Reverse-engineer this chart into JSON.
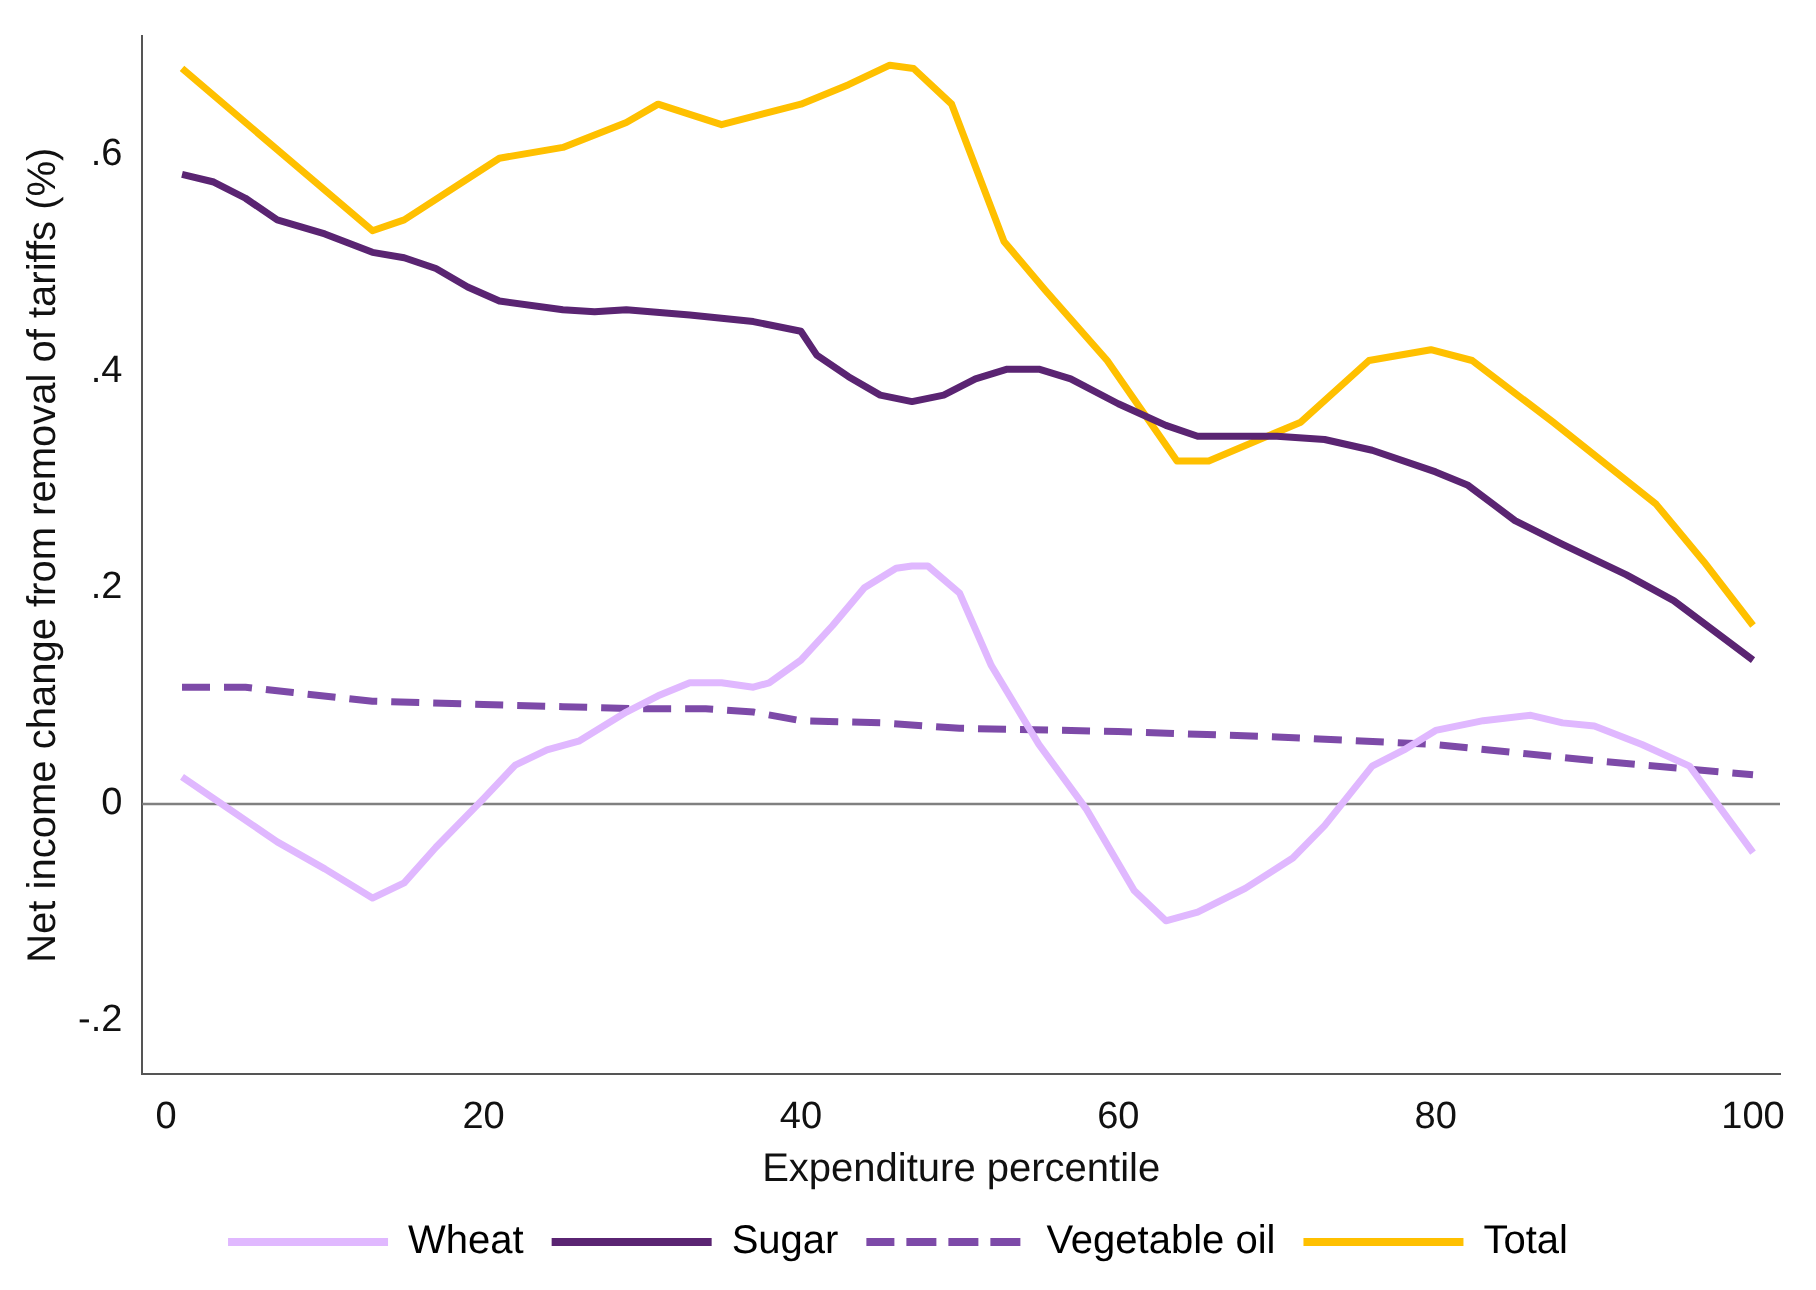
{
  "chart_data": {
    "type": "line",
    "xlabel": "Expenditure percentile",
    "ylabel": "Net income change from removal of tariffs (%)",
    "xlim": [
      -1.5,
      101.7
    ],
    "xticks": [
      0,
      20,
      40,
      60,
      80,
      100
    ],
    "ylim": [
      -0.25,
      0.71
    ],
    "yticks": [
      {
        "value": -0.2,
        "label": "-.2"
      },
      {
        "value": 0,
        "label": "0"
      },
      {
        "value": 0.2,
        "label": ".2"
      },
      {
        "value": 0.4,
        "label": ".4"
      },
      {
        "value": 0.6,
        "label": ".6"
      }
    ],
    "grid": false,
    "legend": "bottom",
    "marker": "none",
    "ref_lines": [
      {
        "axis": "y",
        "value": 0,
        "color": "#808080"
      }
    ],
    "series": [
      {
        "name": "Wheat",
        "color": "#e0b8ff",
        "line_style": "solid",
        "x": [
          1,
          4,
          7,
          10,
          13,
          15,
          17,
          20,
          22,
          24,
          26,
          29,
          31,
          33,
          35,
          37,
          38,
          40,
          42,
          44,
          46,
          47,
          48,
          50,
          52,
          55,
          58,
          61,
          63,
          65,
          68,
          71,
          73,
          76,
          78,
          80,
          83,
          86,
          88,
          90,
          93,
          96,
          100
        ],
        "values": [
          0.025,
          -0.005,
          -0.035,
          -0.06,
          -0.087,
          -0.073,
          -0.04,
          0.005,
          0.036,
          0.05,
          0.058,
          0.085,
          0.1,
          0.112,
          0.112,
          0.108,
          0.112,
          0.133,
          0.165,
          0.2,
          0.218,
          0.22,
          0.22,
          0.195,
          0.128,
          0.055,
          -0.005,
          -0.08,
          -0.108,
          -0.1,
          -0.078,
          -0.05,
          -0.02,
          0.035,
          0.05,
          0.068,
          0.077,
          0.082,
          0.075,
          0.072,
          0.055,
          0.035,
          -0.045
        ]
      },
      {
        "name": "Sugar",
        "color": "#5a2472",
        "line_style": "solid",
        "x": [
          1,
          3,
          5,
          7,
          10,
          13,
          15,
          17,
          19,
          21,
          25,
          27,
          29,
          33,
          37,
          40,
          41,
          43,
          45,
          47,
          49,
          51,
          53,
          55,
          57,
          60,
          63,
          65,
          68,
          70,
          73,
          76,
          80,
          82,
          85,
          88,
          92,
          95,
          100
        ],
        "values": [
          0.582,
          0.575,
          0.56,
          0.54,
          0.527,
          0.51,
          0.505,
          0.495,
          0.478,
          0.465,
          0.457,
          0.455,
          0.457,
          0.452,
          0.446,
          0.437,
          0.415,
          0.395,
          0.378,
          0.372,
          0.378,
          0.393,
          0.402,
          0.402,
          0.393,
          0.37,
          0.35,
          0.34,
          0.34,
          0.34,
          0.337,
          0.327,
          0.307,
          0.295,
          0.262,
          0.24,
          0.212,
          0.188,
          0.133
        ]
      },
      {
        "name": "Vegetable oil",
        "color": "#7d4aa8",
        "line_style": "dashed",
        "x": [
          1,
          5,
          8,
          13,
          20,
          25,
          30,
          34,
          37,
          40,
          45,
          50,
          60,
          70,
          80,
          90,
          100
        ],
        "values": [
          0.108,
          0.108,
          0.103,
          0.095,
          0.092,
          0.09,
          0.088,
          0.088,
          0.085,
          0.077,
          0.075,
          0.07,
          0.067,
          0.062,
          0.055,
          0.04,
          0.027
        ]
      },
      {
        "name": "Total",
        "color": "#ffc000",
        "line_style": "solid",
        "x": [
          1,
          13,
          15,
          21,
          25,
          29,
          31,
          35,
          40,
          43,
          45.6,
          47.1,
          49.5,
          52.8,
          55.4,
          59.3,
          63.7,
          65.7,
          71.5,
          75.8,
          79.7,
          82.3,
          87.4,
          93.9,
          96.9,
          100
        ],
        "values": [
          0.68,
          0.53,
          0.54,
          0.597,
          0.607,
          0.63,
          0.647,
          0.628,
          0.647,
          0.665,
          0.683,
          0.68,
          0.647,
          0.52,
          0.475,
          0.41,
          0.317,
          0.317,
          0.353,
          0.41,
          0.42,
          0.41,
          0.353,
          0.277,
          0.224,
          0.165
        ]
      }
    ]
  }
}
